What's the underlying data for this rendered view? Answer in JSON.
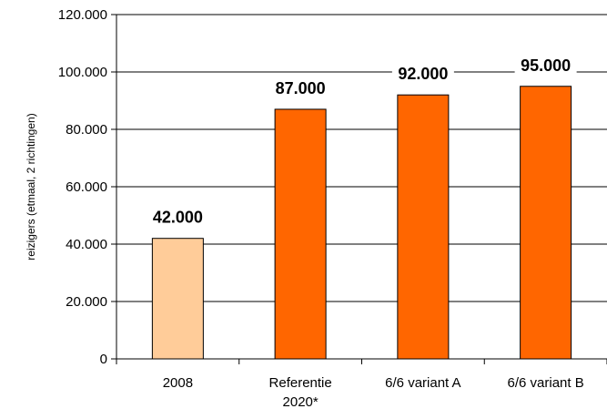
{
  "chart_data": {
    "type": "bar",
    "ylabel": "reizigers (etmaal, 2 richtingen)",
    "ylim": [
      0,
      120000
    ],
    "grid": true,
    "yticks": [
      "0",
      "20.000",
      "40.000",
      "60.000",
      "80.000",
      "100.000",
      "120.000"
    ],
    "categories": [
      [
        "2008"
      ],
      [
        "Referentie",
        "2020*"
      ],
      [
        "6/6 variant A"
      ],
      [
        "6/6 variant B"
      ]
    ],
    "values": [
      42000,
      87000,
      92000,
      95000
    ],
    "data_labels": [
      "42.000",
      "87.000",
      "92.000",
      "95.000"
    ],
    "colors": [
      "#FFCC99",
      "#FF6600",
      "#FF6600",
      "#FF6600"
    ]
  }
}
